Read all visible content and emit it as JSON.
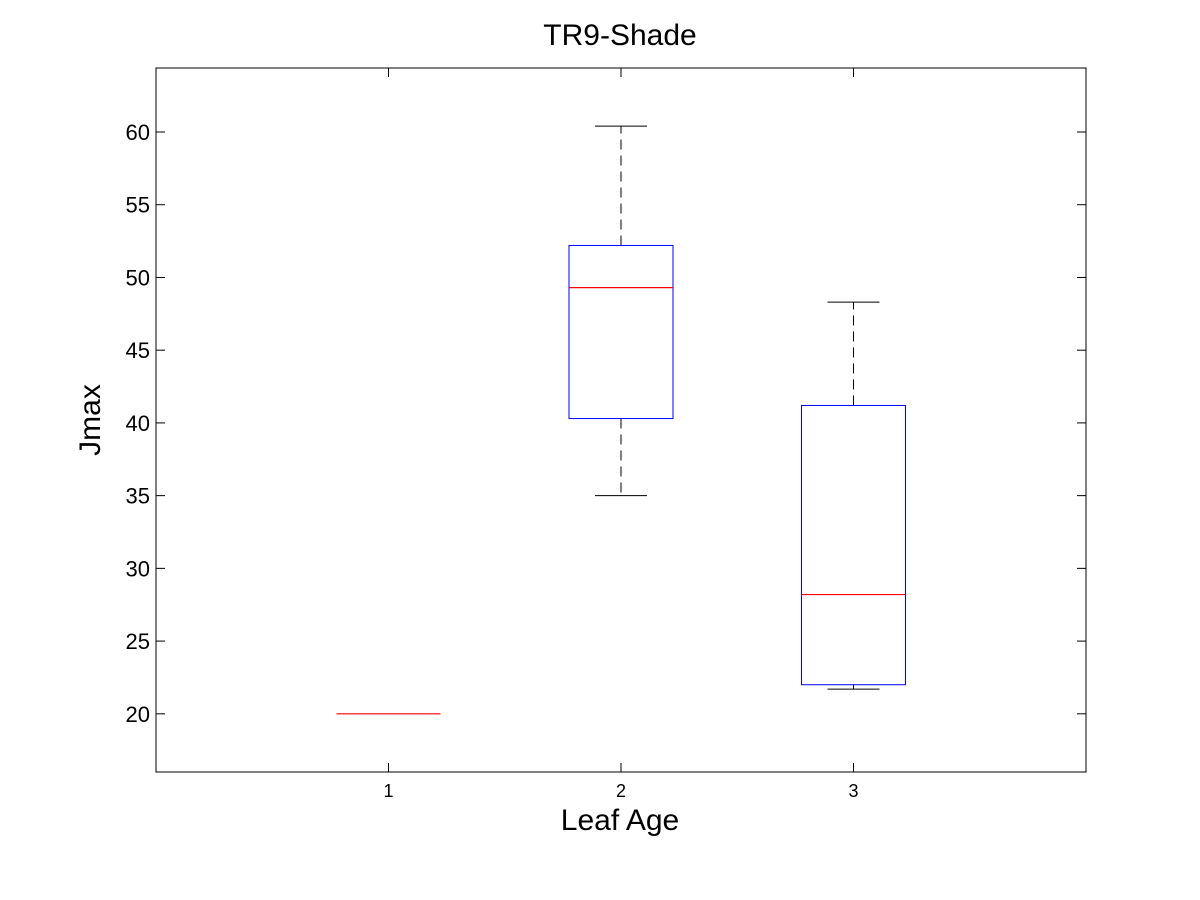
{
  "chart_data": {
    "type": "box",
    "title": "TR9-Shade",
    "xlabel": "Leaf Age",
    "ylabel": "Jmax",
    "categories": [
      "1",
      "2",
      "3"
    ],
    "ylim": [
      16,
      64.4
    ],
    "yticks": [
      20,
      25,
      30,
      35,
      40,
      45,
      50,
      55,
      60
    ],
    "grid": false,
    "boxes": [
      {
        "category": "1",
        "whisker_low": 20,
        "q1": 20,
        "median": 20,
        "q3": 20,
        "whisker_high": 20
      },
      {
        "category": "2",
        "whisker_low": 35,
        "q1": 40.3,
        "median": 49.3,
        "q3": 52.2,
        "whisker_high": 60.4
      },
      {
        "category": "3",
        "whisker_low": 21.7,
        "q1": 22,
        "median": 28.2,
        "q3": 41.2,
        "whisker_high": 48.3
      }
    ],
    "colors": {
      "box": "#0000ff",
      "median": "#ff0000",
      "whisker": "#000000",
      "axes": "#000000"
    }
  }
}
